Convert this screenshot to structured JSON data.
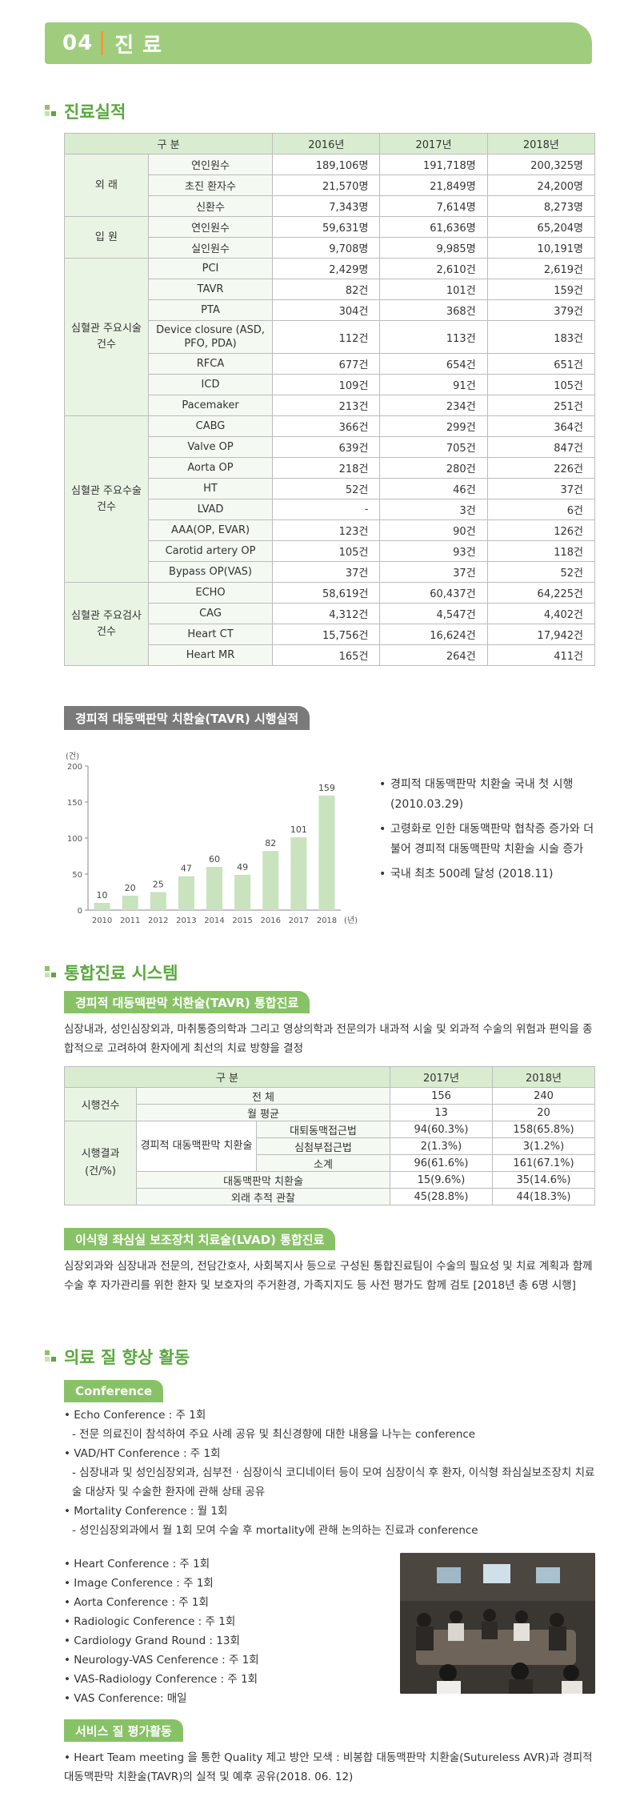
{
  "chapter": {
    "number": "04",
    "title": "진 료"
  },
  "section1": {
    "title": "진료실적"
  },
  "table1": {
    "header": {
      "category": "구 분",
      "y1": "2016년",
      "y2": "2017년",
      "y3": "2018년"
    },
    "groups": [
      {
        "name": "외 래",
        "rows": [
          {
            "label": "연인원수",
            "v": [
              "189,106명",
              "191,718명",
              "200,325명"
            ]
          },
          {
            "label": "초진 환자수",
            "v": [
              "21,570명",
              "21,849명",
              "24,200명"
            ]
          },
          {
            "label": "신환수",
            "v": [
              "7,343명",
              "7,614명",
              "8,273명"
            ]
          }
        ]
      },
      {
        "name": "입 원",
        "rows": [
          {
            "label": "연인원수",
            "v": [
              "59,631명",
              "61,636명",
              "65,204명"
            ]
          },
          {
            "label": "실인원수",
            "v": [
              "9,708명",
              "9,985명",
              "10,191명"
            ]
          }
        ]
      },
      {
        "name": "심혈관 주요시술 건수",
        "rows": [
          {
            "label": "PCI",
            "v": [
              "2,429명",
              "2,610건",
              "2,619건"
            ]
          },
          {
            "label": "TAVR",
            "v": [
              "82건",
              "101건",
              "159건"
            ]
          },
          {
            "label": "PTA",
            "v": [
              "304건",
              "368건",
              "379건"
            ]
          },
          {
            "label": "Device closure (ASD, PFO, PDA)",
            "v": [
              "112건",
              "113건",
              "183건"
            ]
          },
          {
            "label": "RFCA",
            "v": [
              "677건",
              "654건",
              "651건"
            ]
          },
          {
            "label": "ICD",
            "v": [
              "109건",
              "91건",
              "105건"
            ]
          },
          {
            "label": "Pacemaker",
            "v": [
              "213건",
              "234건",
              "251건"
            ]
          }
        ]
      },
      {
        "name": "심혈관 주요수술 건수",
        "rows": [
          {
            "label": "CABG",
            "v": [
              "366건",
              "299건",
              "364건"
            ]
          },
          {
            "label": "Valve OP",
            "v": [
              "639건",
              "705건",
              "847건"
            ]
          },
          {
            "label": "Aorta OP",
            "v": [
              "218건",
              "280건",
              "226건"
            ]
          },
          {
            "label": "HT",
            "v": [
              "52건",
              "46건",
              "37건"
            ]
          },
          {
            "label": "LVAD",
            "v": [
              "-",
              "3건",
              "6건"
            ]
          },
          {
            "label": "AAA(OP, EVAR)",
            "v": [
              "123건",
              "90건",
              "126건"
            ]
          },
          {
            "label": "Carotid artery OP",
            "v": [
              "105건",
              "93건",
              "118건"
            ]
          },
          {
            "label": "Bypass OP(VAS)",
            "v": [
              "37건",
              "37건",
              "52건"
            ]
          }
        ]
      },
      {
        "name": "심혈관 주요검사 건수",
        "rows": [
          {
            "label": "ECHO",
            "v": [
              "58,619건",
              "60,437건",
              "64,225건"
            ]
          },
          {
            "label": "CAG",
            "v": [
              "4,312건",
              "4,547건",
              "4,402건"
            ]
          },
          {
            "label": "Heart CT",
            "v": [
              "15,756건",
              "16,624건",
              "17,942건"
            ]
          },
          {
            "label": "Heart MR",
            "v": [
              "165건",
              "264건",
              "411건"
            ]
          }
        ]
      }
    ]
  },
  "tavr_ribbon": "경피적 대동맥판막 치환술(TAVR) 시행실적",
  "chart_data": {
    "type": "bar",
    "categories": [
      "2010",
      "2011",
      "2012",
      "2013",
      "2014",
      "2015",
      "2016",
      "2017",
      "2018"
    ],
    "values": [
      10,
      20,
      25,
      47,
      60,
      49,
      82,
      101,
      159
    ],
    "ylabel": "(건)",
    "xlabel": "(년)",
    "ylim": [
      0,
      200
    ],
    "yticks": [
      0,
      50,
      100,
      150,
      200
    ],
    "bar_color": "#c8e3bd",
    "grid": false
  },
  "tavr_bullets": [
    "경피적 대동맥판막 치환술 국내 첫 시행 (2010.03.29)",
    "고령화로 인한 대동맥판막 협착증 증가와 더불어 경피적 대동맥판막 치환술 시술 증가",
    "국내 최초 500례 달성 (2018.11)"
  ],
  "section2": {
    "title": "통합진료 시스템"
  },
  "tavr_integrated": {
    "ribbon": "경피적 대동맥판막 치환술(TAVR) 통합진료",
    "text": "심장내과, 성인심장외과, 마취통증의학과 그리고 영상의학과 전문의가 내과적 시술 및 외과적 수술의 위험과 편익을 종합적으로 고려하여 환자에게 최선의 치료 방향을 결정"
  },
  "table2": {
    "header": {
      "category": "구 분",
      "y1": "2017년",
      "y2": "2018년"
    },
    "count_label": "시행건수",
    "total_label": "전 체",
    "total": [
      "156",
      "240"
    ],
    "monthly_label": "월 평균",
    "monthly": [
      "13",
      "20"
    ],
    "result_label": "시행결과 (건/%)",
    "tavr_label": "경피적 대동맥판막 치환술",
    "femoral_label": "대퇴동맥접근법",
    "femoral": [
      "94(60.3%)",
      "158(65.8%)"
    ],
    "apical_label": "심첨부접근법",
    "apical": [
      "2(1.3%)",
      "3(1.2%)"
    ],
    "subtotal_label": "소계",
    "subtotal": [
      "96(61.6%)",
      "161(67.1%)"
    ],
    "avr_label": "대동맥판막 치환술",
    "avr": [
      "15(9.6%)",
      "35(14.6%)"
    ],
    "followup_label": "외래 추적 관찰",
    "followup": [
      "45(28.8%)",
      "44(18.3%)"
    ]
  },
  "lvad": {
    "ribbon": "이식형 좌심실 보조장치 치료술(LVAD) 통합진료",
    "text": "심장외과와 심장내과 전문의, 전담간호사, 사회복지사 등으로 구성된 통합진료팀이 수술의 필요성 및 치료 계획과 함께 수술 후 자가관리를 위한 환자 및 보호자의 주거환경, 가족지지도 등 사전 평가도 함께 검토 [2018년 총 6명 시행]"
  },
  "section3": {
    "title": "의료 질 향상 활동"
  },
  "conference": {
    "ribbon": "Conference",
    "items": [
      {
        "title": "Echo Conference : 주 1회",
        "detail": "- 전문 의료진이 참석하여 주요 사례 공유 및 최신경향에 대한 내용을 나누는 conference"
      },
      {
        "title": "VAD/HT Conference : 주 1회",
        "detail": "- 심장내과 및 성인심장외과, 심부전 · 심장이식 코디네이터 등이 모여 심장이식 후 환자, 이식형 좌심실보조장치 치료술 대상자 및 수술한 환자에 관해 상태 공유"
      },
      {
        "title": "Mortality Conference : 월 1회",
        "detail": "- 성인심장외과에서 월 1회 모여 수술 후 mortality에 관해 논의하는 진료과 conference"
      },
      {
        "title": "Heart Conference : 주 1회",
        "detail": ""
      },
      {
        "title": "Image Conference : 주 1회",
        "detail": ""
      },
      {
        "title": "Aorta Conference : 주 1회",
        "detail": ""
      },
      {
        "title": "Radiologic Conference : 주 1회",
        "detail": ""
      },
      {
        "title": "Cardiology Grand Round : 13회",
        "detail": ""
      },
      {
        "title": "Neurology-VAS Cenference : 주 1회",
        "detail": ""
      },
      {
        "title": "VAS-Radiology Conference : 주 1회",
        "detail": ""
      },
      {
        "title": "VAS Conference: 매일",
        "detail": ""
      }
    ]
  },
  "service": {
    "ribbon": "서비스 질 평가활동",
    "text": "• Heart Team meeting 을 통한 Quality 제고 방안 모색 : 비봉합 대동맥판막 치환술(Sutureless AVR)과 경피적 대동맥판막 치환술(TAVR)의 실적 및 예후 공유(2018. 06. 12)"
  }
}
